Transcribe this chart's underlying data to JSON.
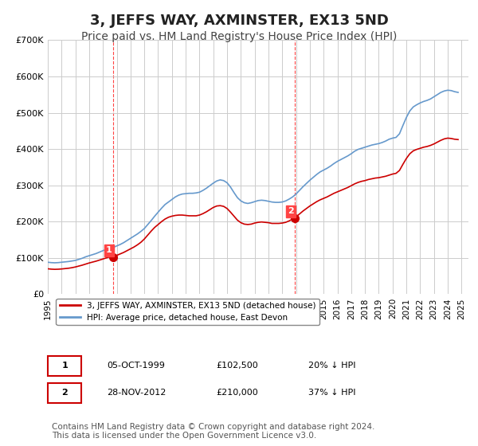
{
  "title": "3, JEFFS WAY, AXMINSTER, EX13 5ND",
  "subtitle": "Price paid vs. HM Land Registry's House Price Index (HPI)",
  "title_fontsize": 13,
  "subtitle_fontsize": 10,
  "bg_color": "#ffffff",
  "plot_bg_color": "#ffffff",
  "grid_color": "#cccccc",
  "red_line_color": "#cc0000",
  "blue_line_color": "#6699cc",
  "marker1_color": "#cc0000",
  "marker2_color": "#cc0000",
  "vline_color": "#ff4444",
  "ylim": [
    0,
    700000
  ],
  "yticks": [
    0,
    100000,
    200000,
    300000,
    400000,
    500000,
    600000,
    700000
  ],
  "ytick_labels": [
    "£0",
    "£100K",
    "£200K",
    "£300K",
    "£400K",
    "£500K",
    "£600K",
    "£700K"
  ],
  "xtick_years": [
    1995,
    1996,
    1997,
    1998,
    1999,
    2000,
    2001,
    2002,
    2003,
    2004,
    2005,
    2006,
    2007,
    2008,
    2009,
    2010,
    2011,
    2012,
    2013,
    2014,
    2015,
    2016,
    2017,
    2018,
    2019,
    2020,
    2021,
    2022,
    2023,
    2024,
    2025
  ],
  "sale1_year": 1999.75,
  "sale1_price": 102500,
  "sale1_label": "1",
  "sale2_year": 2012.9,
  "sale2_price": 210000,
  "sale2_label": "2",
  "legend_red": "3, JEFFS WAY, AXMINSTER, EX13 5ND (detached house)",
  "legend_blue": "HPI: Average price, detached house, East Devon",
  "table_row1": [
    "1",
    "05-OCT-1999",
    "£102,500",
    "20% ↓ HPI"
  ],
  "table_row2": [
    "2",
    "28-NOV-2012",
    "£210,000",
    "37% ↓ HPI"
  ],
  "footnote": "Contains HM Land Registry data © Crown copyright and database right 2024.\nThis data is licensed under the Open Government Licence v3.0.",
  "footnote_fontsize": 7.5,
  "hpi_blue_data": {
    "years": [
      1995,
      1995.25,
      1995.5,
      1995.75,
      1996,
      1996.25,
      1996.5,
      1996.75,
      1997,
      1997.25,
      1997.5,
      1997.75,
      1998,
      1998.25,
      1998.5,
      1998.75,
      1999,
      1999.25,
      1999.5,
      1999.75,
      2000,
      2000.25,
      2000.5,
      2000.75,
      2001,
      2001.25,
      2001.5,
      2001.75,
      2002,
      2002.25,
      2002.5,
      2002.75,
      2003,
      2003.25,
      2003.5,
      2003.75,
      2004,
      2004.25,
      2004.5,
      2004.75,
      2005,
      2005.25,
      2005.5,
      2005.75,
      2006,
      2006.25,
      2006.5,
      2006.75,
      2007,
      2007.25,
      2007.5,
      2007.75,
      2008,
      2008.25,
      2008.5,
      2008.75,
      2009,
      2009.25,
      2009.5,
      2009.75,
      2010,
      2010.25,
      2010.5,
      2010.75,
      2011,
      2011.25,
      2011.5,
      2011.75,
      2012,
      2012.25,
      2012.5,
      2012.75,
      2013,
      2013.25,
      2013.5,
      2013.75,
      2014,
      2014.25,
      2014.5,
      2014.75,
      2015,
      2015.25,
      2015.5,
      2015.75,
      2016,
      2016.25,
      2016.5,
      2016.75,
      2017,
      2017.25,
      2017.5,
      2017.75,
      2018,
      2018.25,
      2018.5,
      2018.75,
      2019,
      2019.25,
      2019.5,
      2019.75,
      2020,
      2020.25,
      2020.5,
      2020.75,
      2021,
      2021.25,
      2021.5,
      2021.75,
      2022,
      2022.25,
      2022.5,
      2022.75,
      2023,
      2023.25,
      2023.5,
      2023.75,
      2024,
      2024.25,
      2024.5,
      2024.75
    ],
    "values": [
      88000,
      87000,
      86500,
      87000,
      88000,
      89000,
      90000,
      91500,
      93000,
      96000,
      99000,
      103000,
      106000,
      109000,
      112000,
      116000,
      120000,
      123000,
      126000,
      129000,
      133000,
      137000,
      142000,
      148000,
      154000,
      160000,
      166000,
      173000,
      181000,
      192000,
      203000,
      215000,
      226000,
      237000,
      247000,
      254000,
      261000,
      268000,
      273000,
      276000,
      277000,
      278000,
      278000,
      279000,
      281000,
      286000,
      292000,
      299000,
      306000,
      312000,
      315000,
      313000,
      307000,
      295000,
      280000,
      266000,
      257000,
      252000,
      250000,
      252000,
      255000,
      258000,
      259000,
      258000,
      256000,
      254000,
      253000,
      253000,
      254000,
      257000,
      262000,
      268000,
      276000,
      286000,
      296000,
      305000,
      314000,
      322000,
      330000,
      337000,
      342000,
      347000,
      353000,
      360000,
      366000,
      371000,
      376000,
      381000,
      387000,
      394000,
      399000,
      402000,
      405000,
      408000,
      411000,
      413000,
      415000,
      418000,
      422000,
      427000,
      430000,
      432000,
      442000,
      465000,
      487000,
      505000,
      516000,
      522000,
      527000,
      531000,
      534000,
      538000,
      544000,
      550000,
      556000,
      560000,
      562000,
      561000,
      558000,
      556000
    ]
  },
  "hpi_red_data": {
    "years": [
      1995,
      1995.25,
      1995.5,
      1995.75,
      1996,
      1996.25,
      1996.5,
      1996.75,
      1997,
      1997.25,
      1997.5,
      1997.75,
      1998,
      1998.25,
      1998.5,
      1998.75,
      1999,
      1999.25,
      1999.5,
      1999.75,
      2000,
      2000.25,
      2000.5,
      2000.75,
      2001,
      2001.25,
      2001.5,
      2001.75,
      2002,
      2002.25,
      2002.5,
      2002.75,
      2003,
      2003.25,
      2003.5,
      2003.75,
      2004,
      2004.25,
      2004.5,
      2004.75,
      2005,
      2005.25,
      2005.5,
      2005.75,
      2006,
      2006.25,
      2006.5,
      2006.75,
      2007,
      2007.25,
      2007.5,
      2007.75,
      2008,
      2008.25,
      2008.5,
      2008.75,
      2009,
      2009.25,
      2009.5,
      2009.75,
      2010,
      2010.25,
      2010.5,
      2010.75,
      2011,
      2011.25,
      2011.5,
      2011.75,
      2012,
      2012.25,
      2012.5,
      2012.75,
      2013,
      2013.25,
      2013.5,
      2013.75,
      2014,
      2014.25,
      2014.5,
      2014.75,
      2015,
      2015.25,
      2015.5,
      2015.75,
      2016,
      2016.25,
      2016.5,
      2016.75,
      2017,
      2017.25,
      2017.5,
      2017.75,
      2018,
      2018.25,
      2018.5,
      2018.75,
      2019,
      2019.25,
      2019.5,
      2019.75,
      2020,
      2020.25,
      2020.5,
      2020.75,
      2021,
      2021.25,
      2021.5,
      2021.75,
      2022,
      2022.25,
      2022.5,
      2022.75,
      2023,
      2023.25,
      2023.5,
      2023.75,
      2024,
      2024.25,
      2024.5,
      2024.75
    ],
    "values": [
      70000,
      69000,
      68500,
      68800,
      69500,
      70500,
      71500,
      73000,
      75000,
      77500,
      80000,
      83000,
      86000,
      88500,
      91000,
      94000,
      97000,
      100000,
      103000,
      102500,
      107000,
      111000,
      115000,
      120000,
      125000,
      130000,
      136000,
      143000,
      152000,
      163000,
      174000,
      184000,
      192000,
      200000,
      207000,
      212000,
      215000,
      217000,
      218000,
      218000,
      217000,
      216000,
      216000,
      216000,
      218000,
      222000,
      227000,
      233000,
      239000,
      243000,
      244000,
      242000,
      236000,
      226000,
      215000,
      204000,
      197000,
      193000,
      192000,
      193000,
      196000,
      198000,
      199000,
      198000,
      197000,
      195000,
      195000,
      195000,
      196000,
      198000,
      202000,
      207000,
      213000,
      221000,
      229000,
      236000,
      243000,
      249000,
      255000,
      260000,
      264000,
      268000,
      273000,
      278000,
      282000,
      286000,
      290000,
      294000,
      299000,
      304000,
      308000,
      311000,
      313000,
      316000,
      318000,
      320000,
      321000,
      323000,
      325000,
      328000,
      331000,
      333000,
      341000,
      358000,
      374000,
      387000,
      395000,
      399000,
      402000,
      405000,
      407000,
      410000,
      414000,
      419000,
      424000,
      428000,
      430000,
      429000,
      427000,
      426000
    ]
  }
}
